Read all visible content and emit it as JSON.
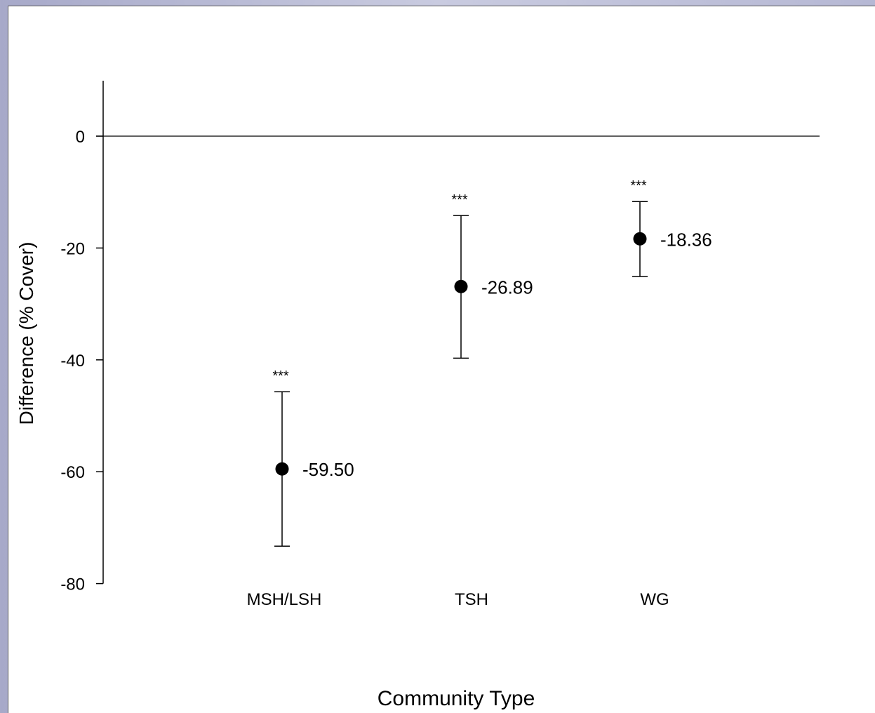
{
  "chart_data": {
    "type": "scatter",
    "subtype": "point-with-error-bars",
    "title": "",
    "xlabel": "Community Type",
    "ylabel": "Difference (% Cover)",
    "ylim": [
      -80,
      10
    ],
    "yticks": [
      0,
      -20,
      -40,
      -60,
      -80
    ],
    "reference_line_y": 0,
    "grid": false,
    "legend": "none",
    "categories": [
      "MSH/LSH",
      "TSH",
      "WG"
    ],
    "series": [
      {
        "values": [
          -59.5,
          -26.89,
          -18.36
        ],
        "lower": [
          -73.3,
          -39.7,
          -25.1
        ],
        "upper": [
          -45.7,
          -14.2,
          -11.7
        ],
        "value_labels": [
          "-59.50",
          "-26.89",
          "-18.36"
        ],
        "significance": [
          "***",
          "***",
          "***"
        ]
      }
    ],
    "colors": {
      "marker": "#000000",
      "axis": "#000000"
    }
  }
}
